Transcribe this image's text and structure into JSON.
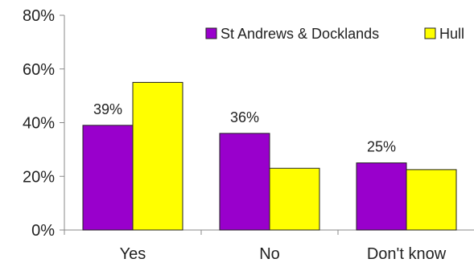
{
  "chart_data": {
    "type": "bar",
    "title": "",
    "xlabel": "",
    "ylabel": "",
    "categories": [
      "Yes",
      "No",
      "Don't know"
    ],
    "ylim": [
      0,
      80
    ],
    "y_ticks": [
      0,
      20,
      40,
      60,
      80
    ],
    "y_tick_labels": [
      "0%",
      "20%",
      "40%",
      "60%",
      "80%"
    ],
    "grid": false,
    "legend_position": "top-right",
    "series": [
      {
        "name": "St Andrews & Docklands",
        "color": "#9900CC",
        "values": [
          39,
          36,
          25
        ],
        "data_labels": [
          "39%",
          "36%",
          "25%"
        ]
      },
      {
        "name": "Hull",
        "color": "#FFFF00",
        "values": [
          55,
          23,
          22.5
        ],
        "data_labels": [
          "",
          "",
          ""
        ]
      }
    ]
  }
}
